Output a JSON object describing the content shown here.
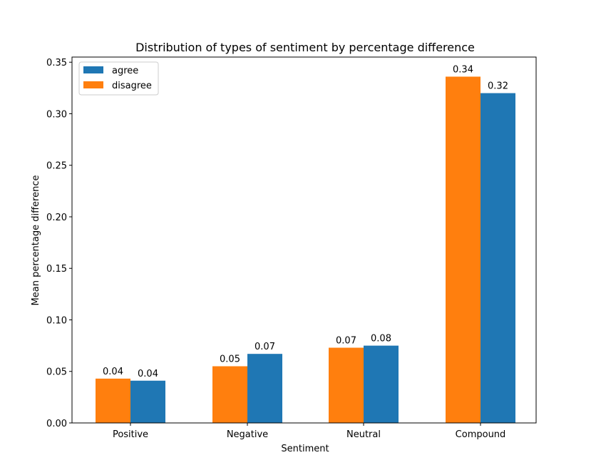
{
  "chart_data": {
    "type": "bar",
    "title": "Distribution of types of sentiment by percentage difference",
    "xlabel": "Sentiment",
    "ylabel": "Mean percentage difference",
    "categories": [
      "Positive",
      "Negative",
      "Neutral",
      "Compound"
    ],
    "ylim": [
      0,
      0.355
    ],
    "yticks": [
      "0.00",
      "0.05",
      "0.10",
      "0.15",
      "0.20",
      "0.25",
      "0.30",
      "0.35"
    ],
    "grid": false,
    "legend_position": "top-left",
    "series": [
      {
        "name": "disagree",
        "color": "#ff7f0e",
        "values": [
          0.043,
          0.055,
          0.073,
          0.336
        ],
        "labels": [
          "0.04",
          "0.05",
          "0.07",
          "0.34"
        ]
      },
      {
        "name": "agree",
        "color": "#1f77b4",
        "values": [
          0.041,
          0.067,
          0.075,
          0.32
        ],
        "labels": [
          "0.04",
          "0.07",
          "0.08",
          "0.32"
        ]
      }
    ],
    "legend_order": [
      "agree",
      "disagree"
    ]
  }
}
